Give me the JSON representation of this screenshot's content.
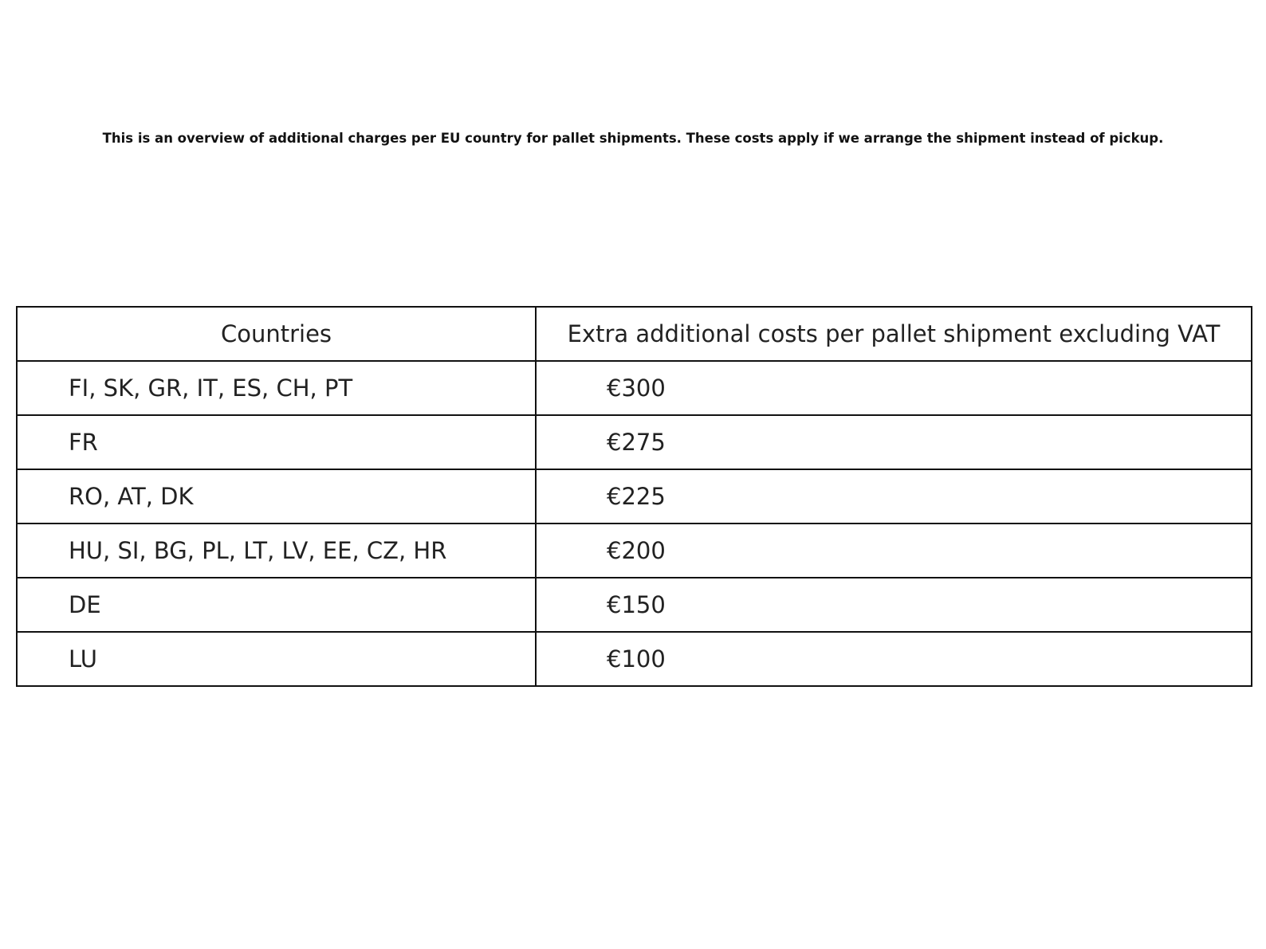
{
  "title": "This is an overview of additional charges per EU country for pallet shipments. These costs apply if we arrange the shipment instead of pickup.",
  "table": {
    "headers": [
      "Countries",
      "Extra additional costs per pallet shipment excluding VAT"
    ],
    "rows": [
      {
        "countries": "FI, SK, GR, IT, ES, CH, PT",
        "cost": "€300"
      },
      {
        "countries": "FR",
        "cost": "€275"
      },
      {
        "countries": "RO, AT, DK",
        "cost": "€225"
      },
      {
        "countries": "HU, SI, BG, PL, LT, LV, EE, CZ, HR",
        "cost": "€200"
      },
      {
        "countries": "DE",
        "cost": "€150"
      },
      {
        "countries": "LU",
        "cost": "€100"
      }
    ]
  }
}
